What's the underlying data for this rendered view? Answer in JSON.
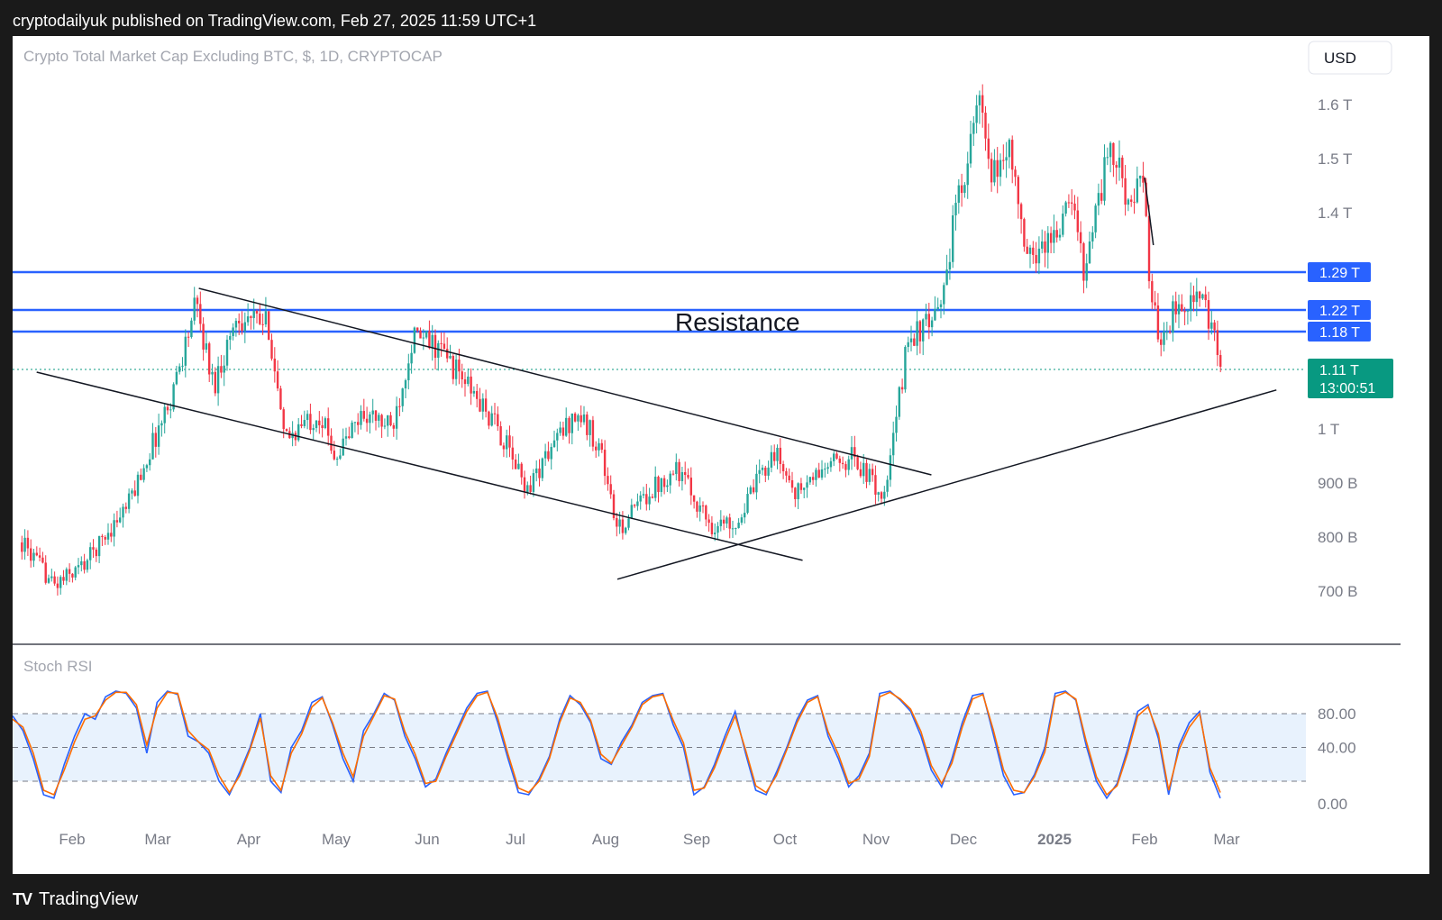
{
  "header": {
    "text": "cryptodailyuk published on TradingView.com, Feb 27, 2025 11:59 UTC+1"
  },
  "footer": {
    "logo": "TV",
    "brand": "TradingView"
  },
  "colors": {
    "up": "#26a69a",
    "down": "#f23645",
    "hline": "#2962ff",
    "stoch_k": "#2962ff",
    "stoch_d": "#ff6d00",
    "last_price": "#089981"
  },
  "chart_data": [
    {
      "type": "candlestick",
      "title": "Crypto Total Market Cap Excluding BTC, $, 1D, CRYPTOCAP",
      "currency_button": "USD",
      "annotation": "Resistance",
      "y_ticks": [
        {
          "value": 1.6,
          "label": "1.6 T"
        },
        {
          "value": 1.5,
          "label": "1.5 T"
        },
        {
          "value": 1.4,
          "label": "1.4 T"
        },
        {
          "value": 1.0,
          "label": "1 T"
        },
        {
          "value": 0.9,
          "label": "900 B"
        },
        {
          "value": 0.8,
          "label": "800 B"
        },
        {
          "value": 0.7,
          "label": "700 B"
        }
      ],
      "ylim": [
        0.63,
        1.67
      ],
      "x_ticks": [
        "Feb",
        "Mar",
        "Apr",
        "May",
        "Jun",
        "Jul",
        "Aug",
        "Sep",
        "Oct",
        "Nov",
        "Dec",
        "2025",
        "Feb",
        "Mar"
      ],
      "x_tick_dates": [
        "2024-02-01",
        "2024-03-01",
        "2024-04-01",
        "2024-05-01",
        "2024-06-01",
        "2024-07-01",
        "2024-08-01",
        "2024-09-01",
        "2024-10-01",
        "2024-11-01",
        "2024-12-01",
        "2025-01-01",
        "2025-02-01",
        "2025-03-01"
      ],
      "horizontal_levels": [
        {
          "value": 1.29,
          "label": "1.29 T"
        },
        {
          "value": 1.22,
          "label": "1.22 T"
        },
        {
          "value": 1.18,
          "label": "1.18 T"
        }
      ],
      "last_price": {
        "value": 1.11,
        "label": "1.11 T",
        "countdown": "13:00:51"
      },
      "trendlines": [
        {
          "from": [
            "2024-03-15",
            1.26
          ],
          "to": [
            "2024-11-20",
            0.915
          ]
        },
        {
          "from": [
            "2024-01-20",
            1.105
          ],
          "to": [
            "2024-10-07",
            0.757
          ]
        },
        {
          "from": [
            "2024-08-05",
            0.722
          ],
          "to": [
            "2025-03-18",
            1.072
          ]
        },
        {
          "from": [
            "2025-02-01",
            1.465
          ],
          "to": [
            "2025-02-04",
            1.34
          ]
        }
      ],
      "series": [
        {
          "name": "",
          "ohlc_path": [
            [
              "2024-01-15",
              0.79
            ],
            [
              "2024-01-26",
              0.71
            ],
            [
              "2024-02-05",
              0.75
            ],
            [
              "2024-02-20",
              0.86
            ],
            [
              "2024-03-05",
              1.05
            ],
            [
              "2024-03-14",
              1.23
            ],
            [
              "2024-03-20",
              1.08
            ],
            [
              "2024-03-28",
              1.21
            ],
            [
              "2024-04-08",
              1.19
            ],
            [
              "2024-04-13",
              0.98
            ],
            [
              "2024-04-25",
              1.03
            ],
            [
              "2024-05-01",
              0.95
            ],
            [
              "2024-05-10",
              1.03
            ],
            [
              "2024-05-20",
              1.0
            ],
            [
              "2024-05-27",
              1.17
            ],
            [
              "2024-06-05",
              1.15
            ],
            [
              "2024-06-12",
              1.1
            ],
            [
              "2024-06-25",
              1.0
            ],
            [
              "2024-07-05",
              0.89
            ],
            [
              "2024-07-15",
              0.98
            ],
            [
              "2024-07-22",
              1.03
            ],
            [
              "2024-07-30",
              0.97
            ],
            [
              "2024-08-05",
              0.81
            ],
            [
              "2024-08-15",
              0.88
            ],
            [
              "2024-08-25",
              0.93
            ],
            [
              "2024-09-06",
              0.82
            ],
            [
              "2024-09-15",
              0.83
            ],
            [
              "2024-09-27",
              0.96
            ],
            [
              "2024-10-05",
              0.88
            ],
            [
              "2024-10-15",
              0.93
            ],
            [
              "2024-10-24",
              0.95
            ],
            [
              "2024-11-04",
              0.87
            ],
            [
              "2024-11-12",
              1.17
            ],
            [
              "2024-11-22",
              1.2
            ],
            [
              "2024-11-30",
              1.45
            ],
            [
              "2024-12-07",
              1.61
            ],
            [
              "2024-12-10",
              1.45
            ],
            [
              "2024-12-17",
              1.53
            ],
            [
              "2024-12-22",
              1.31
            ],
            [
              "2025-01-01",
              1.36
            ],
            [
              "2025-01-07",
              1.42
            ],
            [
              "2025-01-11",
              1.3
            ],
            [
              "2025-01-20",
              1.52
            ],
            [
              "2025-01-27",
              1.42
            ],
            [
              "2025-02-01",
              1.45
            ],
            [
              "2025-02-03",
              1.24
            ],
            [
              "2025-02-06",
              1.17
            ],
            [
              "2025-02-14",
              1.24
            ],
            [
              "2025-02-20",
              1.24
            ],
            [
              "2025-02-24",
              1.18
            ],
            [
              "2025-02-27",
              1.11
            ]
          ]
        }
      ]
    },
    {
      "type": "line",
      "title": "Stoch RSI",
      "y_ticks": [
        "80.00",
        "40.00",
        "0.00"
      ],
      "levels": [
        80,
        50,
        20
      ],
      "ylim": [
        0,
        100
      ],
      "series": [
        {
          "name": "",
          "color": "#2962ff",
          "values": [
            78,
            65,
            40,
            8,
            5,
            35,
            60,
            80,
            75,
            95,
            100,
            98,
            85,
            45,
            90,
            100,
            97,
            60,
            55,
            45,
            20,
            8,
            28,
            50,
            80,
            20,
            10,
            50,
            65,
            90,
            95,
            70,
            40,
            20,
            65,
            80,
            98,
            92,
            60,
            40,
            15,
            22,
            45,
            65,
            85,
            98,
            100,
            72,
            40,
            10,
            8,
            22,
            42,
            75,
            96,
            88,
            72,
            40,
            35,
            55,
            70,
            90,
            96,
            98,
            70,
            50,
            8,
            15,
            35,
            60,
            82,
            45,
            12,
            8,
            28,
            50,
            75,
            92,
            96,
            60,
            40,
            15,
            25,
            45,
            98,
            100,
            92,
            82,
            60,
            30,
            15,
            40,
            72,
            96,
            98,
            62,
            25,
            8,
            10,
            26,
            50,
            98,
            100,
            92,
            52,
            20,
            5,
            18,
            48,
            82,
            88,
            58,
            8,
            52,
            72,
            82,
            28,
            5
          ]
        },
        {
          "name": "",
          "color": "#ff6d00",
          "values": [
            75,
            68,
            45,
            12,
            8,
            30,
            55,
            75,
            78,
            92,
            99,
            99,
            88,
            52,
            85,
            99,
            98,
            65,
            55,
            48,
            25,
            10,
            25,
            48,
            76,
            25,
            12,
            45,
            62,
            86,
            94,
            72,
            45,
            24,
            60,
            78,
            96,
            93,
            64,
            44,
            18,
            20,
            42,
            62,
            82,
            96,
            99,
            76,
            44,
            14,
            10,
            20,
            40,
            72,
            94,
            90,
            74,
            44,
            36,
            52,
            68,
            88,
            95,
            97,
            74,
            54,
            12,
            14,
            32,
            56,
            78,
            48,
            16,
            10,
            25,
            48,
            72,
            90,
            95,
            64,
            44,
            18,
            22,
            42,
            95,
            99,
            93,
            84,
            64,
            34,
            18,
            36,
            68,
            93,
            97,
            66,
            30,
            12,
            10,
            24,
            46,
            95,
            99,
            93,
            56,
            24,
            8,
            16,
            44,
            78,
            86,
            62,
            12,
            48,
            68,
            80,
            32,
            10
          ]
        }
      ]
    }
  ]
}
